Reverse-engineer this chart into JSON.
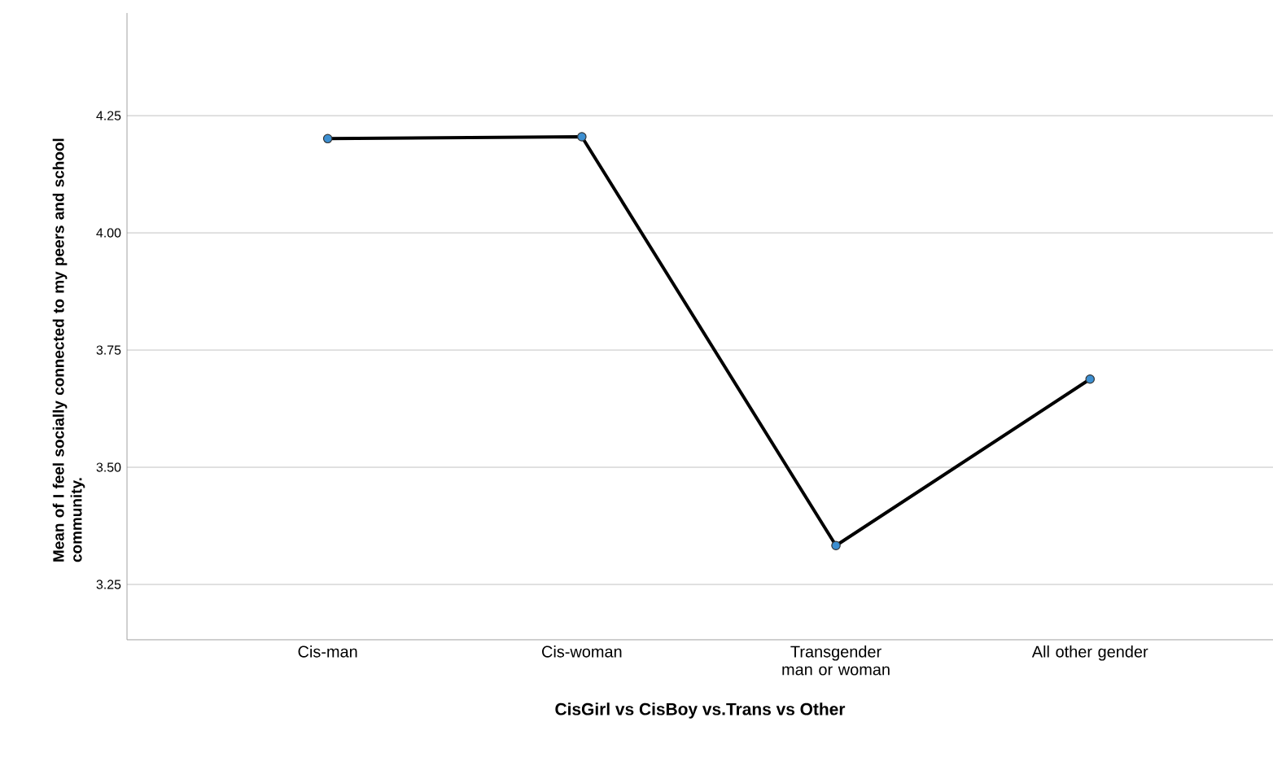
{
  "chart_data": {
    "type": "line",
    "xlabel": "CisGirl vs CisBoy vs.Trans vs Other",
    "ylabel": "Mean of I feel socially connected to my peers and school community.",
    "categories": [
      "Cis-man",
      "Cis-woman",
      "Transgender man or woman",
      "All other gender"
    ],
    "series": [
      {
        "color": "#000000",
        "values": [
          4.201,
          4.205,
          3.333,
          3.688
        ]
      }
    ],
    "ylim": [
      3.132,
      4.469
    ],
    "yticks": [
      {
        "value": 3.25,
        "label": "3.25"
      },
      {
        "value": 3.5,
        "label": "3.50"
      },
      {
        "value": 3.75,
        "label": "3.75"
      },
      {
        "value": 4.0,
        "label": "4.00"
      },
      {
        "value": 4.25,
        "label": "4.25"
      }
    ],
    "grid": "y",
    "marker": "circle",
    "line_style": "solid",
    "legend": false
  }
}
